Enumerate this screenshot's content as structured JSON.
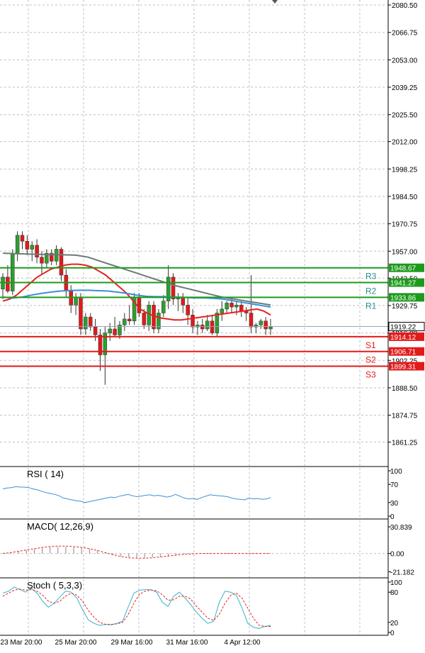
{
  "colors": {
    "background": "#ffffff",
    "grid": "#c0c0c0",
    "bull_candle": "#2e9e2e",
    "bear_candle": "#e21a1a",
    "ma_red": "#e8201e",
    "ma_blue": "#3a8fd8",
    "ma_gray": "#6e7a78",
    "resistance": "#1d9a1d",
    "support": "#e21a1a",
    "resistance_label": "#2a9090",
    "support_label": "#e21a1a",
    "price_tag_current": "#ffffff",
    "rsi": "#3a8fd8",
    "macd_signal": "#e8201e",
    "stoch_main": "#34b4c8",
    "stoch_signal": "#e8201e"
  },
  "chart_data": [
    {
      "type": "candlestick",
      "panel": "price",
      "ylim": [
        1849,
        2083
      ],
      "y_ticks": [
        "2080.50",
        "2066.75",
        "2053.00",
        "2039.25",
        "2025.50",
        "2012.00",
        "1998.25",
        "1984.50",
        "1970.75",
        "1957.00",
        "1943.50",
        "1929.75",
        "1916.00",
        "1902.25",
        "1888.50",
        "1874.75",
        "1861.25"
      ],
      "x_ticks": [
        "23 Mar 20:00",
        "25 Mar 20:00",
        "29 Mar 16:00",
        "31 Mar 16:00",
        "4 Apr 12:00"
      ],
      "current_price": "1919.22",
      "levels": [
        {
          "label": "R3",
          "value": "1948.67",
          "kind": "resistance"
        },
        {
          "label": "R2",
          "value": "1941.27",
          "kind": "resistance"
        },
        {
          "label": "R1",
          "value": "1933.86",
          "kind": "resistance"
        },
        {
          "label": "S1",
          "value": "1914.12",
          "kind": "support"
        },
        {
          "label": "S2",
          "value": "1906.71",
          "kind": "support"
        },
        {
          "label": "S3",
          "value": "1899.31",
          "kind": "support"
        }
      ],
      "candles": [
        {
          "o": 1938,
          "h": 1946,
          "l": 1933,
          "c": 1944
        },
        {
          "o": 1944,
          "h": 1950,
          "l": 1936,
          "c": 1937
        },
        {
          "o": 1937,
          "h": 1958,
          "l": 1935,
          "c": 1956
        },
        {
          "o": 1956,
          "h": 1967,
          "l": 1952,
          "c": 1965
        },
        {
          "o": 1965,
          "h": 1967,
          "l": 1958,
          "c": 1962
        },
        {
          "o": 1962,
          "h": 1965,
          "l": 1955,
          "c": 1958
        },
        {
          "o": 1958,
          "h": 1962,
          "l": 1952,
          "c": 1960
        },
        {
          "o": 1960,
          "h": 1963,
          "l": 1951,
          "c": 1954
        },
        {
          "o": 1954,
          "h": 1957,
          "l": 1945,
          "c": 1951
        },
        {
          "o": 1951,
          "h": 1958,
          "l": 1949,
          "c": 1956
        },
        {
          "o": 1956,
          "h": 1958,
          "l": 1950,
          "c": 1952
        },
        {
          "o": 1952,
          "h": 1960,
          "l": 1950,
          "c": 1958
        },
        {
          "o": 1958,
          "h": 1959,
          "l": 1942,
          "c": 1945
        },
        {
          "o": 1945,
          "h": 1948,
          "l": 1934,
          "c": 1937
        },
        {
          "o": 1937,
          "h": 1940,
          "l": 1926,
          "c": 1930
        },
        {
          "o": 1930,
          "h": 1936,
          "l": 1925,
          "c": 1934
        },
        {
          "o": 1934,
          "h": 1936,
          "l": 1915,
          "c": 1918
        },
        {
          "o": 1918,
          "h": 1926,
          "l": 1915,
          "c": 1924
        },
        {
          "o": 1924,
          "h": 1926,
          "l": 1917,
          "c": 1919
        },
        {
          "o": 1919,
          "h": 1923,
          "l": 1912,
          "c": 1915
        },
        {
          "o": 1915,
          "h": 1918,
          "l": 1897,
          "c": 1905
        },
        {
          "o": 1905,
          "h": 1919,
          "l": 1890,
          "c": 1916
        },
        {
          "o": 1916,
          "h": 1921,
          "l": 1912,
          "c": 1918
        },
        {
          "o": 1918,
          "h": 1924,
          "l": 1914,
          "c": 1915
        },
        {
          "o": 1915,
          "h": 1922,
          "l": 1913,
          "c": 1920
        },
        {
          "o": 1920,
          "h": 1926,
          "l": 1917,
          "c": 1923
        },
        {
          "o": 1923,
          "h": 1930,
          "l": 1920,
          "c": 1922
        },
        {
          "o": 1922,
          "h": 1936,
          "l": 1920,
          "c": 1934
        },
        {
          "o": 1934,
          "h": 1936,
          "l": 1924,
          "c": 1926
        },
        {
          "o": 1926,
          "h": 1928,
          "l": 1918,
          "c": 1920
        },
        {
          "o": 1920,
          "h": 1932,
          "l": 1917,
          "c": 1930
        },
        {
          "o": 1930,
          "h": 1932,
          "l": 1916,
          "c": 1918
        },
        {
          "o": 1918,
          "h": 1928,
          "l": 1916,
          "c": 1926
        },
        {
          "o": 1926,
          "h": 1935,
          "l": 1924,
          "c": 1932
        },
        {
          "o": 1932,
          "h": 1950,
          "l": 1928,
          "c": 1944
        },
        {
          "o": 1944,
          "h": 1946,
          "l": 1930,
          "c": 1933
        },
        {
          "o": 1933,
          "h": 1936,
          "l": 1927,
          "c": 1934
        },
        {
          "o": 1934,
          "h": 1936,
          "l": 1926,
          "c": 1930
        },
        {
          "o": 1930,
          "h": 1934,
          "l": 1920,
          "c": 1925
        },
        {
          "o": 1925,
          "h": 1928,
          "l": 1916,
          "c": 1919
        },
        {
          "o": 1919,
          "h": 1922,
          "l": 1915,
          "c": 1920
        },
        {
          "o": 1920,
          "h": 1923,
          "l": 1916,
          "c": 1918
        },
        {
          "o": 1918,
          "h": 1925,
          "l": 1917,
          "c": 1922
        },
        {
          "o": 1922,
          "h": 1925,
          "l": 1915,
          "c": 1916
        },
        {
          "o": 1916,
          "h": 1928,
          "l": 1914,
          "c": 1926
        },
        {
          "o": 1926,
          "h": 1932,
          "l": 1922,
          "c": 1928
        },
        {
          "o": 1928,
          "h": 1932,
          "l": 1926,
          "c": 1931
        },
        {
          "o": 1931,
          "h": 1933,
          "l": 1926,
          "c": 1929
        },
        {
          "o": 1929,
          "h": 1932,
          "l": 1925,
          "c": 1930
        },
        {
          "o": 1930,
          "h": 1932,
          "l": 1924,
          "c": 1927
        },
        {
          "o": 1927,
          "h": 1929,
          "l": 1922,
          "c": 1926
        },
        {
          "o": 1926,
          "h": 1945,
          "l": 1916,
          "c": 1919
        },
        {
          "o": 1919,
          "h": 1921,
          "l": 1916,
          "c": 1920
        },
        {
          "o": 1920,
          "h": 1923,
          "l": 1918,
          "c": 1922
        },
        {
          "o": 1922,
          "h": 1924,
          "l": 1915,
          "c": 1918
        },
        {
          "o": 1918,
          "h": 1923,
          "l": 1915,
          "c": 1919
        }
      ],
      "series": [
        {
          "key": "ma_red",
          "values": [
            1932,
            1933,
            1935,
            1938,
            1941,
            1944,
            1946,
            1948,
            1949,
            1950,
            1950.5,
            1950.5,
            1950,
            1949,
            1947,
            1945,
            1942,
            1939,
            1936,
            1932,
            1928,
            1926,
            1924.5,
            1923.5,
            1923,
            1922.5,
            1922.5,
            1923,
            1923.5,
            1924,
            1924.5,
            1925,
            1925.5,
            1926,
            1926.5,
            1927,
            1927.5,
            1928,
            1927,
            1925
          ]
        },
        {
          "key": "ma_blue",
          "values": [
            1934,
            1933.5,
            1934,
            1935,
            1935.8,
            1936.5,
            1937,
            1937.3,
            1937.4,
            1937.4,
            1937.2,
            1937,
            1936.5,
            1935.8,
            1935,
            1934.4,
            1934.2,
            1934.2,
            1934,
            1933.8,
            1933.6,
            1933.6,
            1933.4,
            1933,
            1932.2,
            1931.4,
            1930.6,
            1929.8,
            1929
          ]
        },
        {
          "key": "ma_gray",
          "values": [
            1956,
            1955.8,
            1955.6,
            1955.4,
            1955.3,
            1955.2,
            1955,
            1954,
            1952,
            1950,
            1948,
            1946,
            1944,
            1942,
            1940,
            1938.5,
            1937,
            1935.5,
            1934,
            1933,
            1932,
            1931,
            1930
          ]
        }
      ]
    },
    {
      "type": "line",
      "panel": "rsi",
      "title": "RSI ( 14)",
      "ylim": [
        0,
        100
      ],
      "y_ticks": [
        "100",
        "70",
        "30",
        "0"
      ],
      "series": [
        {
          "key": "rsi",
          "values": [
            60,
            62,
            63,
            65,
            64,
            64,
            63,
            60,
            58,
            55,
            52,
            50,
            48,
            45,
            40,
            38,
            36,
            34,
            33,
            30,
            32,
            34,
            36,
            38,
            40,
            42,
            41,
            44,
            46,
            48,
            45,
            43,
            44,
            46,
            47,
            45,
            46,
            44,
            42,
            44,
            48,
            44,
            40,
            38,
            39,
            37,
            41,
            44,
            47,
            46,
            45,
            44,
            43,
            40,
            38,
            37,
            36,
            40,
            38,
            39,
            37,
            38,
            41
          ]
        }
      ]
    },
    {
      "type": "line",
      "panel": "macd",
      "title": "MACD( 12,26,9)",
      "ylim": [
        -25,
        35
      ],
      "y_ticks": [
        "30.839",
        "0.00",
        "-21.182"
      ],
      "series": [
        {
          "key": "macd_signal",
          "values": [
            0,
            1,
            2.5,
            4,
            5.5,
            7,
            8,
            8.5,
            8.5,
            8,
            7,
            5.5,
            3.5,
            1,
            -1.5,
            -3.5,
            -5,
            -5.5,
            -5.5,
            -5,
            -4,
            -3,
            -2,
            -1,
            -0.5,
            0,
            0,
            0,
            0,
            0,
            0,
            0,
            0,
            0,
            0
          ]
        }
      ]
    },
    {
      "type": "line",
      "panel": "stoch",
      "title": "Stoch ( 5,3,3)",
      "ylim": [
        0,
        100
      ],
      "y_ticks": [
        "100",
        "80",
        "20",
        "0"
      ],
      "series": [
        {
          "key": "stoch_main",
          "values": [
            78,
            82,
            90,
            85,
            80,
            88,
            78,
            62,
            50,
            58,
            70,
            82,
            80,
            68,
            45,
            25,
            18,
            14,
            16,
            15,
            18,
            22,
            50,
            78,
            84,
            85,
            85,
            80,
            60,
            52,
            72,
            80,
            68,
            55,
            40,
            28,
            18,
            22,
            60,
            82,
            80,
            74,
            48,
            18,
            10,
            8,
            12,
            14
          ]
        },
        {
          "key": "stoch_signal",
          "values": [
            72,
            78,
            84,
            86,
            84,
            85,
            82,
            74,
            62,
            58,
            62,
            72,
            78,
            74,
            62,
            44,
            30,
            20,
            16,
            16,
            17,
            20,
            35,
            58,
            76,
            82,
            84,
            83,
            75,
            64,
            65,
            72,
            72,
            66,
            52,
            40,
            28,
            24,
            36,
            58,
            74,
            78,
            68,
            48,
            28,
            14,
            12,
            12
          ]
        }
      ]
    }
  ]
}
